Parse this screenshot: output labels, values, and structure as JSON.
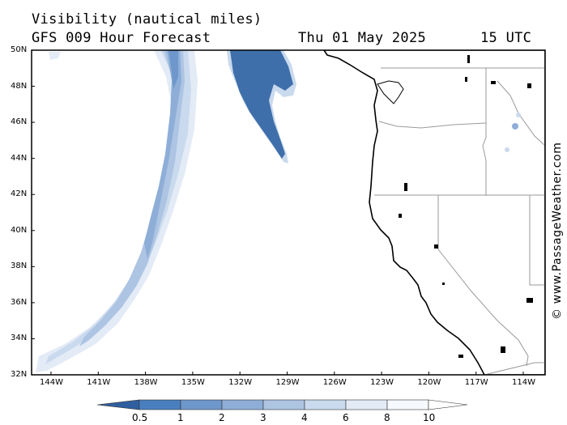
{
  "header": {
    "title_line1": "Visibility (nautical miles)",
    "model_line": "GFS 009 Hour Forecast",
    "date": "Thu 01 May 2025",
    "time": "15 UTC"
  },
  "map": {
    "lat_labels": [
      "50N",
      "48N",
      "46N",
      "44N",
      "42N",
      "40N",
      "38N",
      "36N",
      "34N",
      "32N"
    ],
    "lon_labels": [
      "144W",
      "141W",
      "138W",
      "135W",
      "132W",
      "129W",
      "126W",
      "123W",
      "120W",
      "117W",
      "114W"
    ],
    "lat_range": [
      32,
      50
    ],
    "lon_range": [
      -146,
      -114
    ],
    "grid": false
  },
  "legend": {
    "labels": [
      "0.5",
      "1",
      "2",
      "3",
      "4",
      "6",
      "8",
      "10"
    ],
    "colors": [
      "#3f6faa",
      "#4a7fbf",
      "#6e97cb",
      "#8eaed8",
      "#adc4e3",
      "#cadaee",
      "#e3ebf6",
      "#f6f9fd"
    ]
  },
  "credit": "© www.PassageWeather.com"
}
